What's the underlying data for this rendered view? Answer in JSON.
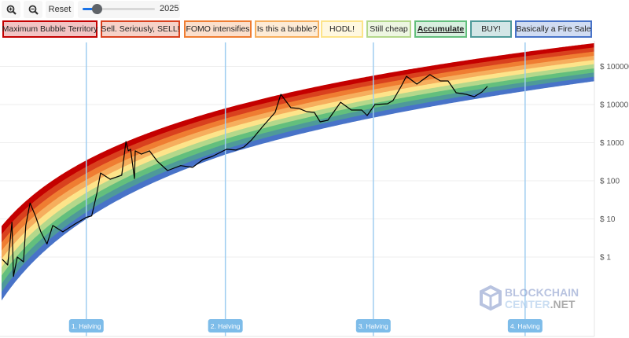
{
  "toolbar": {
    "zoom_in_icon": "zoom-in-icon",
    "zoom_out_icon": "zoom-out-icon",
    "reset_label": "Reset",
    "year_slider": {
      "value_label": "2025",
      "fraction": 0.2
    }
  },
  "legend": [
    {
      "label": "Maximum Bubble Territory",
      "color": "#c40000",
      "fill": "#f2c4c4"
    },
    {
      "label": "Sell. Seriously, SELL!",
      "color": "#d9411e",
      "fill": "#f6d2c8"
    },
    {
      "label": "FOMO intensifies",
      "color": "#ef7d32",
      "fill": "#fbdfcc"
    },
    {
      "label": "Is this a bubble?",
      "color": "#f6ae5d",
      "fill": "#fdebd6"
    },
    {
      "label": "HODL!",
      "color": "#fde48a",
      "fill": "#fff8e0"
    },
    {
      "label": "Still cheap",
      "color": "#b4d88b",
      "fill": "#edf6e2"
    },
    {
      "label": "Accumulate",
      "color": "#63bf7d",
      "fill": "#d8efdf",
      "active": true
    },
    {
      "label": "BUY!",
      "color": "#4e9a99",
      "fill": "#d3e6e6"
    },
    {
      "label": "Basically a Fire Sale",
      "color": "#4873c8",
      "fill": "#d1dcf2"
    }
  ],
  "chart_data": {
    "type": "line",
    "title": "",
    "xlabel": "",
    "ylabel": "",
    "y_scale": "log",
    "ylim": [
      0.05,
      1000000
    ],
    "xlim": [
      2010.67,
      2026.1
    ],
    "grid": true,
    "y_ticks": [
      {
        "value": 100000,
        "label": "$ 100000"
      },
      {
        "value": 10000,
        "label": "$ 10000"
      },
      {
        "value": 1000,
        "label": "$ 1000"
      },
      {
        "value": 100,
        "label": "$ 100"
      },
      {
        "value": 10,
        "label": "$ 10"
      },
      {
        "value": 1,
        "label": "$ 1"
      }
    ],
    "bands": [
      "Maximum Bubble Territory",
      "Sell. Seriously, SELL!",
      "FOMO intensifies",
      "Is this a bubble?",
      "HODL!",
      "Still cheap",
      "Accumulate",
      "BUY!",
      "Basically a Fire Sale"
    ],
    "halvings": [
      {
        "year": 2012.91,
        "label": "1. Halving"
      },
      {
        "year": 2016.52,
        "label": "2. Halving"
      },
      {
        "year": 2020.36,
        "label": "3. Halving"
      },
      {
        "year": 2024.3,
        "label": "4. Halving"
      }
    ],
    "series": [
      {
        "color": "#000000",
        "points": [
          [
            2010.73,
            0.87
          ],
          [
            2010.87,
            0.62
          ],
          [
            2010.98,
            8.1
          ],
          [
            2011.02,
            0.31
          ],
          [
            2011.12,
            1
          ],
          [
            2011.28,
            0.75
          ],
          [
            2011.34,
            6.7
          ],
          [
            2011.45,
            26
          ],
          [
            2011.59,
            12
          ],
          [
            2011.73,
            4.6
          ],
          [
            2011.89,
            2.2
          ],
          [
            2012.04,
            6.7
          ],
          [
            2012.3,
            4.6
          ],
          [
            2012.61,
            7.3
          ],
          [
            2012.91,
            11
          ],
          [
            2013.05,
            12
          ],
          [
            2013.18,
            45
          ],
          [
            2013.28,
            160
          ],
          [
            2013.53,
            110
          ],
          [
            2013.83,
            140
          ],
          [
            2013.94,
            1070
          ],
          [
            2014.0,
            610
          ],
          [
            2014.06,
            670
          ],
          [
            2014.16,
            115
          ],
          [
            2014.18,
            610
          ],
          [
            2014.34,
            500
          ],
          [
            2014.55,
            610
          ],
          [
            2014.75,
            330
          ],
          [
            2015.02,
            185
          ],
          [
            2015.36,
            250
          ],
          [
            2015.67,
            225
          ],
          [
            2015.94,
            360
          ],
          [
            2016.18,
            435
          ],
          [
            2016.55,
            670
          ],
          [
            2016.79,
            640
          ],
          [
            2017.0,
            770
          ],
          [
            2017.2,
            1180
          ],
          [
            2017.47,
            2520
          ],
          [
            2017.81,
            6220
          ],
          [
            2017.96,
            18500
          ],
          [
            2018.22,
            8270
          ],
          [
            2018.43,
            7890
          ],
          [
            2018.63,
            6520
          ],
          [
            2018.83,
            6220
          ],
          [
            2018.98,
            3520
          ],
          [
            2019.18,
            3870
          ],
          [
            2019.51,
            11500
          ],
          [
            2019.79,
            7170
          ],
          [
            2020.06,
            7170
          ],
          [
            2020.2,
            5140
          ],
          [
            2020.4,
            10000
          ],
          [
            2020.73,
            10500
          ],
          [
            2020.87,
            12700
          ],
          [
            2021.08,
            29800
          ],
          [
            2021.22,
            55200
          ],
          [
            2021.49,
            34400
          ],
          [
            2021.83,
            60800
          ],
          [
            2022.1,
            41600
          ],
          [
            2022.3,
            41600
          ],
          [
            2022.51,
            20400
          ],
          [
            2022.77,
            18500
          ],
          [
            2022.98,
            16100
          ],
          [
            2023.18,
            21400
          ],
          [
            2023.32,
            29800
          ]
        ]
      }
    ]
  },
  "watermark": {
    "line1": "BLOCKCHAIN",
    "line2a": "CENTER",
    "line2b": ".NET"
  }
}
